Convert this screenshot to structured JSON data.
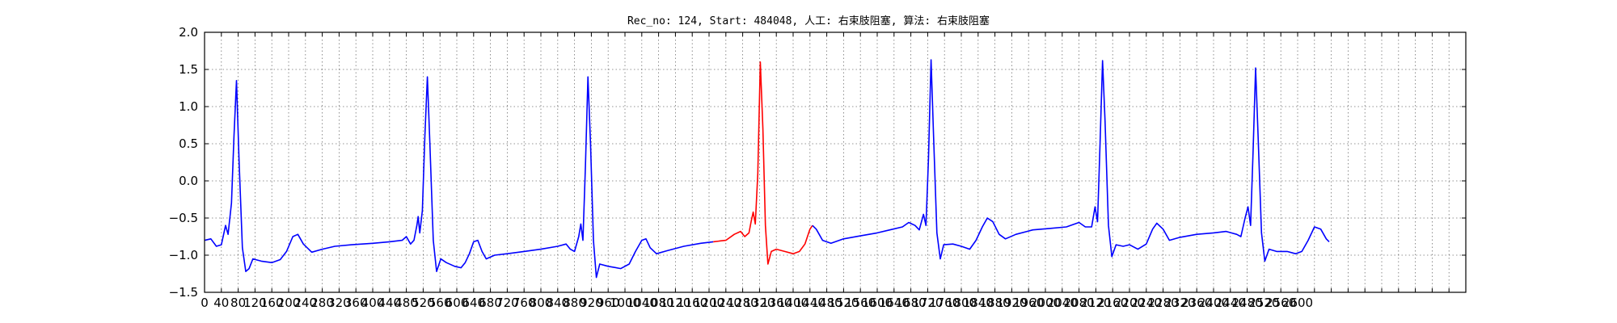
{
  "chart_data": {
    "type": "line",
    "title": "Rec_no: 124, Start: 484048, 人工: 右束肢阻塞, 算法: 右束肢阻塞",
    "xlabel": "",
    "ylabel": "",
    "xlim": [
      0,
      3000
    ],
    "ylim": [
      -1.5,
      2.0
    ],
    "yticks": [
      -1.5,
      -1.0,
      -0.5,
      0.0,
      0.5,
      1.0,
      1.5,
      2.0
    ],
    "ytick_labels": [
      "−1.5",
      "−1.0",
      "−0.5",
      "0.0",
      "0.5",
      "1.0",
      "1.5",
      "2.0"
    ],
    "xticks": [
      0,
      40,
      80,
      120,
      160,
      200,
      240,
      280,
      320,
      360,
      400,
      440,
      480,
      520,
      560,
      600,
      640,
      680,
      720,
      760,
      800,
      840,
      880,
      920,
      960,
      1000,
      1040,
      1080,
      1120,
      1160,
      1200,
      1240,
      1280,
      1320,
      1360,
      1400,
      1440,
      1480,
      1520,
      1560,
      1600,
      1640,
      1680,
      1720,
      1760,
      1800,
      1840,
      1880,
      1920,
      1960,
      2000,
      2040,
      2080,
      2120,
      2160,
      2200,
      2240,
      2280,
      2320,
      2360,
      2400,
      2440,
      2480,
      2520,
      2560,
      2600,
      2640,
      2680,
      2720,
      2760,
      2800,
      2840,
      2880,
      2920,
      2960,
      3000
    ],
    "xtick_labels_shown": [
      "0",
      "40",
      "80",
      "120",
      "160",
      "200",
      "240",
      "280",
      "320",
      "360",
      "400",
      "440",
      "480",
      "520",
      "560",
      "600",
      "640",
      "680",
      "720",
      "760",
      "800",
      "840",
      "880",
      "920",
      "960",
      "1000",
      "1040",
      "1080",
      "1120",
      "1160",
      "1200",
      "1240",
      "1280",
      "1320",
      "1360",
      "1400",
      "1440",
      "1480",
      "1520",
      "1560",
      "1600",
      "1640",
      "1680",
      "1720",
      "1760",
      "1800",
      "1840",
      "1880",
      "1920",
      "1960",
      "2000",
      "2040",
      "2080",
      "2120",
      "2160",
      "2200",
      "2240",
      "2280",
      "2320",
      "2360",
      "2400",
      "2440",
      "2480",
      "2520",
      "2560",
      "2600"
    ],
    "grid": true,
    "series": [
      {
        "color": "#0000ff",
        "points": [
          [
            0,
            -0.8
          ],
          [
            15,
            -0.78
          ],
          [
            28,
            -0.88
          ],
          [
            40,
            -0.86
          ],
          [
            50,
            -0.6
          ],
          [
            56,
            -0.72
          ],
          [
            64,
            -0.3
          ],
          [
            70,
            0.6
          ],
          [
            76,
            1.35
          ],
          [
            82,
            0.3
          ],
          [
            90,
            -0.9
          ],
          [
            98,
            -1.22
          ],
          [
            106,
            -1.18
          ],
          [
            115,
            -1.05
          ],
          [
            135,
            -1.08
          ],
          [
            160,
            -1.1
          ],
          [
            180,
            -1.06
          ],
          [
            195,
            -0.95
          ],
          [
            210,
            -0.75
          ],
          [
            222,
            -0.72
          ],
          [
            235,
            -0.85
          ],
          [
            255,
            -0.96
          ],
          [
            280,
            -0.92
          ],
          [
            310,
            -0.88
          ],
          [
            350,
            -0.86
          ],
          [
            400,
            -0.84
          ],
          [
            440,
            -0.82
          ],
          [
            470,
            -0.8
          ],
          [
            480,
            -0.75
          ],
          [
            490,
            -0.85
          ],
          [
            498,
            -0.8
          ],
          [
            505,
            -0.6
          ],
          [
            508,
            -0.48
          ],
          [
            512,
            -0.7
          ],
          [
            518,
            -0.4
          ],
          [
            524,
            0.6
          ],
          [
            530,
            1.4
          ],
          [
            536,
            0.5
          ],
          [
            544,
            -0.8
          ],
          [
            552,
            -1.22
          ],
          [
            562,
            -1.05
          ],
          [
            575,
            -1.1
          ],
          [
            595,
            -1.15
          ],
          [
            610,
            -1.17
          ],
          [
            620,
            -1.1
          ],
          [
            630,
            -0.98
          ],
          [
            640,
            -0.82
          ],
          [
            650,
            -0.8
          ],
          [
            660,
            -0.95
          ],
          [
            670,
            -1.05
          ],
          [
            690,
            -1.0
          ],
          [
            720,
            -0.98
          ],
          [
            760,
            -0.95
          ],
          [
            800,
            -0.92
          ],
          [
            840,
            -0.88
          ],
          [
            860,
            -0.85
          ],
          [
            870,
            -0.92
          ],
          [
            880,
            -0.95
          ],
          [
            890,
            -0.75
          ],
          [
            895,
            -0.58
          ],
          [
            900,
            -0.8
          ],
          [
            906,
            0.2
          ],
          [
            912,
            1.4
          ],
          [
            918,
            0.5
          ],
          [
            925,
            -0.8
          ],
          [
            932,
            -1.3
          ],
          [
            940,
            -1.12
          ],
          [
            960,
            -1.15
          ],
          [
            990,
            -1.18
          ],
          [
            1010,
            -1.12
          ],
          [
            1025,
            -0.95
          ],
          [
            1040,
            -0.8
          ],
          [
            1050,
            -0.78
          ],
          [
            1060,
            -0.9
          ],
          [
            1075,
            -0.98
          ],
          [
            1100,
            -0.94
          ],
          [
            1140,
            -0.88
          ],
          [
            1180,
            -0.84
          ],
          [
            1210,
            -0.82
          ]
        ]
      },
      {
        "color": "#ff0000",
        "points": [
          [
            1210,
            -0.82
          ],
          [
            1240,
            -0.8
          ],
          [
            1260,
            -0.72
          ],
          [
            1275,
            -0.68
          ],
          [
            1285,
            -0.75
          ],
          [
            1295,
            -0.7
          ],
          [
            1300,
            -0.55
          ],
          [
            1305,
            -0.42
          ],
          [
            1310,
            -0.58
          ],
          [
            1316,
            0.1
          ],
          [
            1322,
            1.6
          ],
          [
            1328,
            0.7
          ],
          [
            1334,
            -0.6
          ],
          [
            1340,
            -1.12
          ],
          [
            1348,
            -0.95
          ],
          [
            1360,
            -0.92
          ],
          [
            1380,
            -0.95
          ],
          [
            1400,
            -0.98
          ],
          [
            1415,
            -0.95
          ],
          [
            1428,
            -0.85
          ],
          [
            1440,
            -0.65
          ],
          [
            1446,
            -0.6
          ]
        ]
      },
      {
        "color": "#0000ff",
        "points": [
          [
            1446,
            -0.6
          ],
          [
            1455,
            -0.65
          ],
          [
            1470,
            -0.8
          ],
          [
            1490,
            -0.84
          ],
          [
            1520,
            -0.78
          ],
          [
            1560,
            -0.74
          ],
          [
            1600,
            -0.7
          ],
          [
            1630,
            -0.66
          ],
          [
            1660,
            -0.62
          ],
          [
            1675,
            -0.56
          ],
          [
            1690,
            -0.6
          ],
          [
            1700,
            -0.66
          ],
          [
            1710,
            -0.45
          ],
          [
            1716,
            -0.6
          ],
          [
            1722,
            0.3
          ],
          [
            1728,
            1.63
          ],
          [
            1734,
            0.6
          ],
          [
            1742,
            -0.7
          ],
          [
            1750,
            -1.05
          ],
          [
            1758,
            -0.86
          ],
          [
            1780,
            -0.85
          ],
          [
            1800,
            -0.88
          ],
          [
            1820,
            -0.92
          ],
          [
            1835,
            -0.8
          ],
          [
            1850,
            -0.62
          ],
          [
            1862,
            -0.5
          ],
          [
            1875,
            -0.55
          ],
          [
            1890,
            -0.72
          ],
          [
            1905,
            -0.78
          ],
          [
            1930,
            -0.72
          ],
          [
            1970,
            -0.66
          ],
          [
            2010,
            -0.64
          ],
          [
            2050,
            -0.62
          ],
          [
            2080,
            -0.56
          ],
          [
            2095,
            -0.62
          ],
          [
            2110,
            -0.62
          ],
          [
            2118,
            -0.35
          ],
          [
            2124,
            -0.55
          ],
          [
            2130,
            0.5
          ],
          [
            2136,
            1.62
          ],
          [
            2142,
            0.8
          ],
          [
            2150,
            -0.6
          ],
          [
            2158,
            -1.02
          ],
          [
            2168,
            -0.86
          ],
          [
            2185,
            -0.88
          ],
          [
            2200,
            -0.86
          ],
          [
            2220,
            -0.92
          ],
          [
            2240,
            -0.85
          ],
          [
            2255,
            -0.65
          ],
          [
            2265,
            -0.57
          ],
          [
            2280,
            -0.65
          ],
          [
            2295,
            -0.8
          ],
          [
            2320,
            -0.76
          ],
          [
            2360,
            -0.72
          ],
          [
            2400,
            -0.7
          ],
          [
            2430,
            -0.68
          ],
          [
            2455,
            -0.72
          ],
          [
            2465,
            -0.75
          ],
          [
            2475,
            -0.5
          ],
          [
            2482,
            -0.35
          ],
          [
            2488,
            -0.6
          ],
          [
            2494,
            0.4
          ],
          [
            2500,
            1.52
          ],
          [
            2506,
            0.6
          ],
          [
            2514,
            -0.7
          ],
          [
            2522,
            -1.08
          ],
          [
            2532,
            -0.92
          ],
          [
            2550,
            -0.95
          ],
          [
            2575,
            -0.95
          ],
          [
            2595,
            -0.98
          ],
          [
            2610,
            -0.95
          ],
          [
            2625,
            -0.8
          ],
          [
            2640,
            -0.62
          ],
          [
            2655,
            -0.65
          ],
          [
            2668,
            -0.78
          ],
          [
            2675,
            -0.82
          ]
        ]
      }
    ]
  }
}
